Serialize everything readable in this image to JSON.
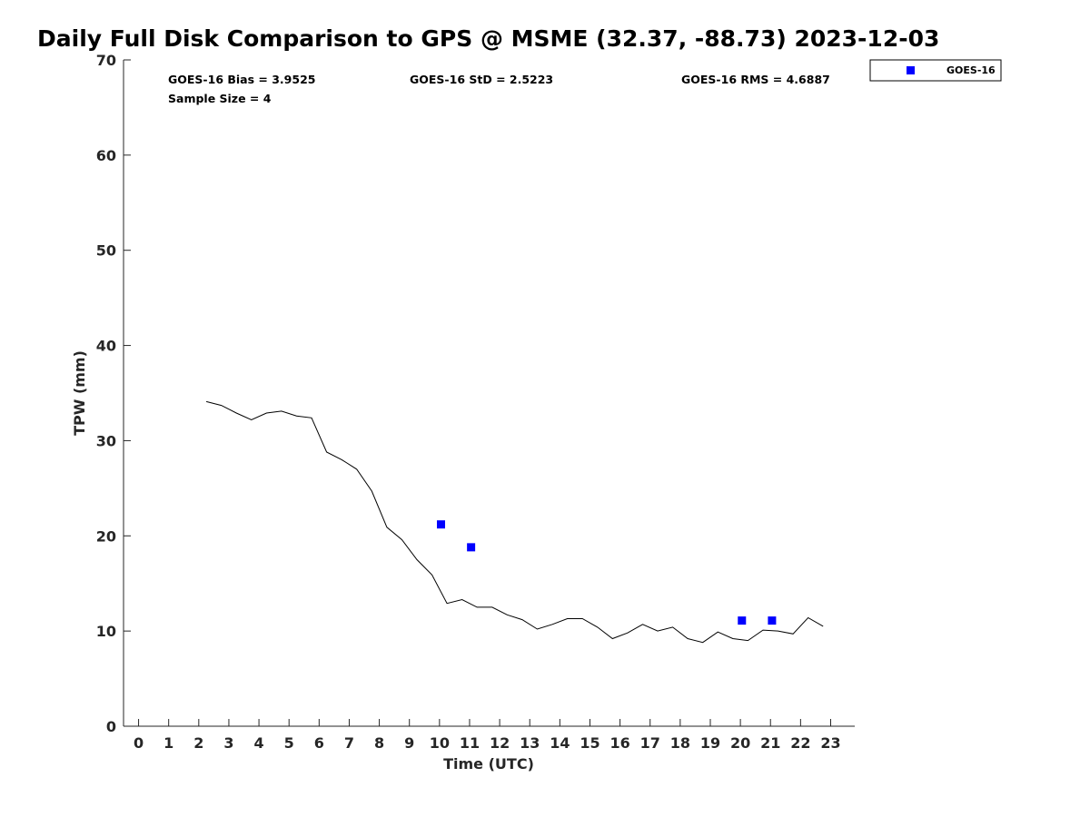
{
  "chart_data": {
    "type": "line",
    "title": "Daily Full Disk Comparison to GPS @ MSME (32.37, -88.73) 2023-12-03",
    "xlabel": "Time (UTC)",
    "ylabel": "TPW (mm)",
    "xlim": [
      -0.5,
      23.8
    ],
    "ylim": [
      0,
      70
    ],
    "x_ticks": [
      0,
      1,
      2,
      3,
      4,
      5,
      6,
      7,
      8,
      9,
      10,
      11,
      12,
      13,
      14,
      15,
      16,
      17,
      18,
      19,
      20,
      21,
      22,
      23
    ],
    "y_ticks": [
      0,
      10,
      20,
      30,
      40,
      50,
      60,
      70
    ],
    "grid": false,
    "legend_position": "top-right, outside plot",
    "stats": {
      "bias": "GOES-16 Bias = 3.9525",
      "std": "GOES-16 StD = 2.5223",
      "rms": "GOES-16 RMS = 4.6887",
      "sample_size": "Sample Size = 4"
    },
    "series": [
      {
        "type": "line",
        "color": "#000000",
        "x": [
          2.25,
          2.75,
          3.25,
          3.75,
          4.25,
          4.75,
          5.25,
          5.75,
          6.25,
          6.75,
          7.25,
          7.75,
          8.25,
          8.75,
          9.25,
          9.75,
          10.25,
          10.75,
          11.25,
          11.75,
          12.25,
          12.75,
          13.25,
          13.75,
          14.25,
          14.75,
          15.25,
          15.75,
          16.25,
          16.75,
          17.25,
          17.75,
          18.25,
          18.75,
          19.25,
          19.75,
          20.25,
          20.75,
          21.25,
          21.75,
          22.25,
          22.75
        ],
        "y": [
          34.1,
          33.7,
          32.9,
          32.2,
          32.9,
          33.1,
          32.6,
          32.4,
          28.8,
          28.0,
          27.0,
          24.7,
          20.9,
          19.6,
          17.5,
          15.9,
          12.9,
          13.3,
          12.5,
          12.5,
          11.7,
          11.2,
          10.2,
          10.7,
          11.3,
          11.3,
          10.4,
          9.2,
          9.8,
          10.7,
          10.0,
          10.4,
          9.2,
          8.8,
          9.9,
          9.2,
          9.0,
          10.1,
          10.0,
          9.7,
          11.4,
          10.5
        ]
      },
      {
        "name": "GOES-16",
        "type": "scatter",
        "marker": "square",
        "color": "#0000ff",
        "x": [
          10.05,
          11.05,
          20.05,
          21.05
        ],
        "y": [
          21.2,
          18.8,
          11.1,
          11.1
        ]
      }
    ]
  }
}
